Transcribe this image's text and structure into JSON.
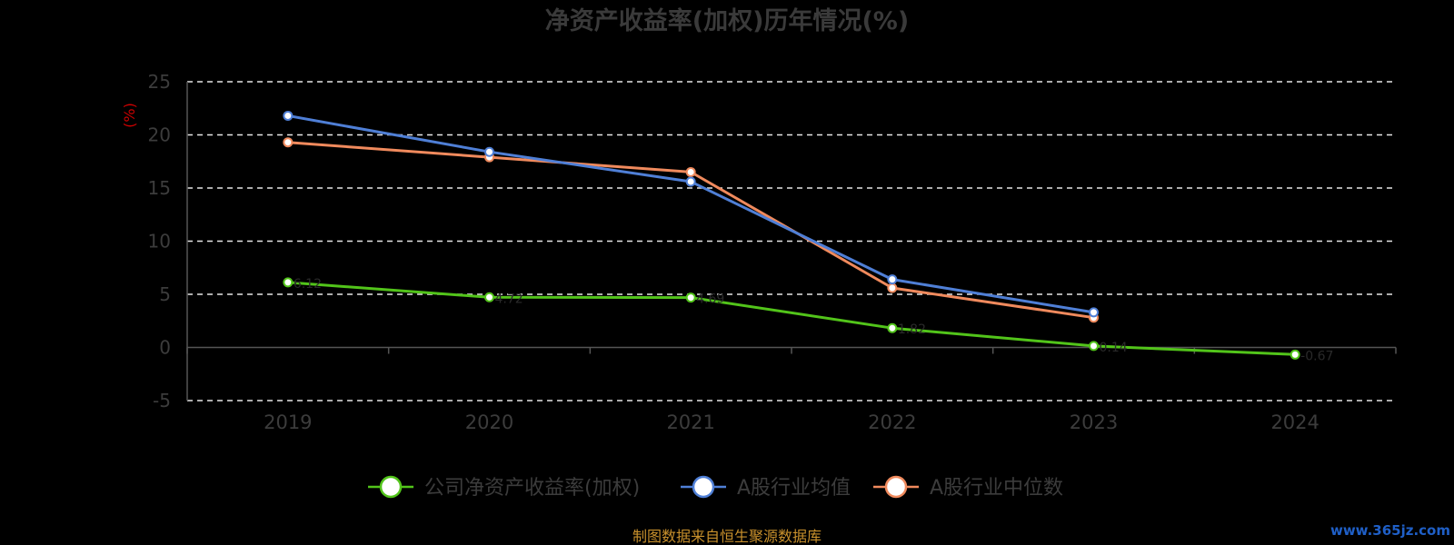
{
  "chart_data": {
    "type": "line",
    "title": "净资产收益率(加权)历年情况(%)",
    "ylabel": "(%)",
    "xlabel": "",
    "categories": [
      "2019",
      "2020",
      "2021",
      "2022",
      "2023",
      "2024"
    ],
    "ylim": [
      -5,
      25
    ],
    "yticks": [
      "25",
      "20",
      "15",
      "10",
      "5",
      "0",
      "-5"
    ],
    "grid": true,
    "legend_position": "bottom",
    "series": [
      {
        "name": "公司净资产收益率(加权)",
        "color": "#52c41a",
        "values": [
          6.12,
          4.72,
          4.69,
          1.82,
          0.14,
          -0.67
        ],
        "labels": [
          "6.12",
          "4.72",
          "4.69",
          "1.82",
          "0.14",
          "-0.67"
        ]
      },
      {
        "name": "A股行业均值",
        "color": "#4f7fd6",
        "values": [
          21.8,
          18.4,
          15.6,
          6.4,
          3.3,
          null
        ]
      },
      {
        "name": "A股行业中位数",
        "color": "#f08a5d",
        "values": [
          19.3,
          17.9,
          16.5,
          5.6,
          2.8,
          null
        ]
      }
    ]
  },
  "footer": {
    "source": "制图数据来自恒生聚源数据库",
    "watermark": "www.365jz.com"
  }
}
